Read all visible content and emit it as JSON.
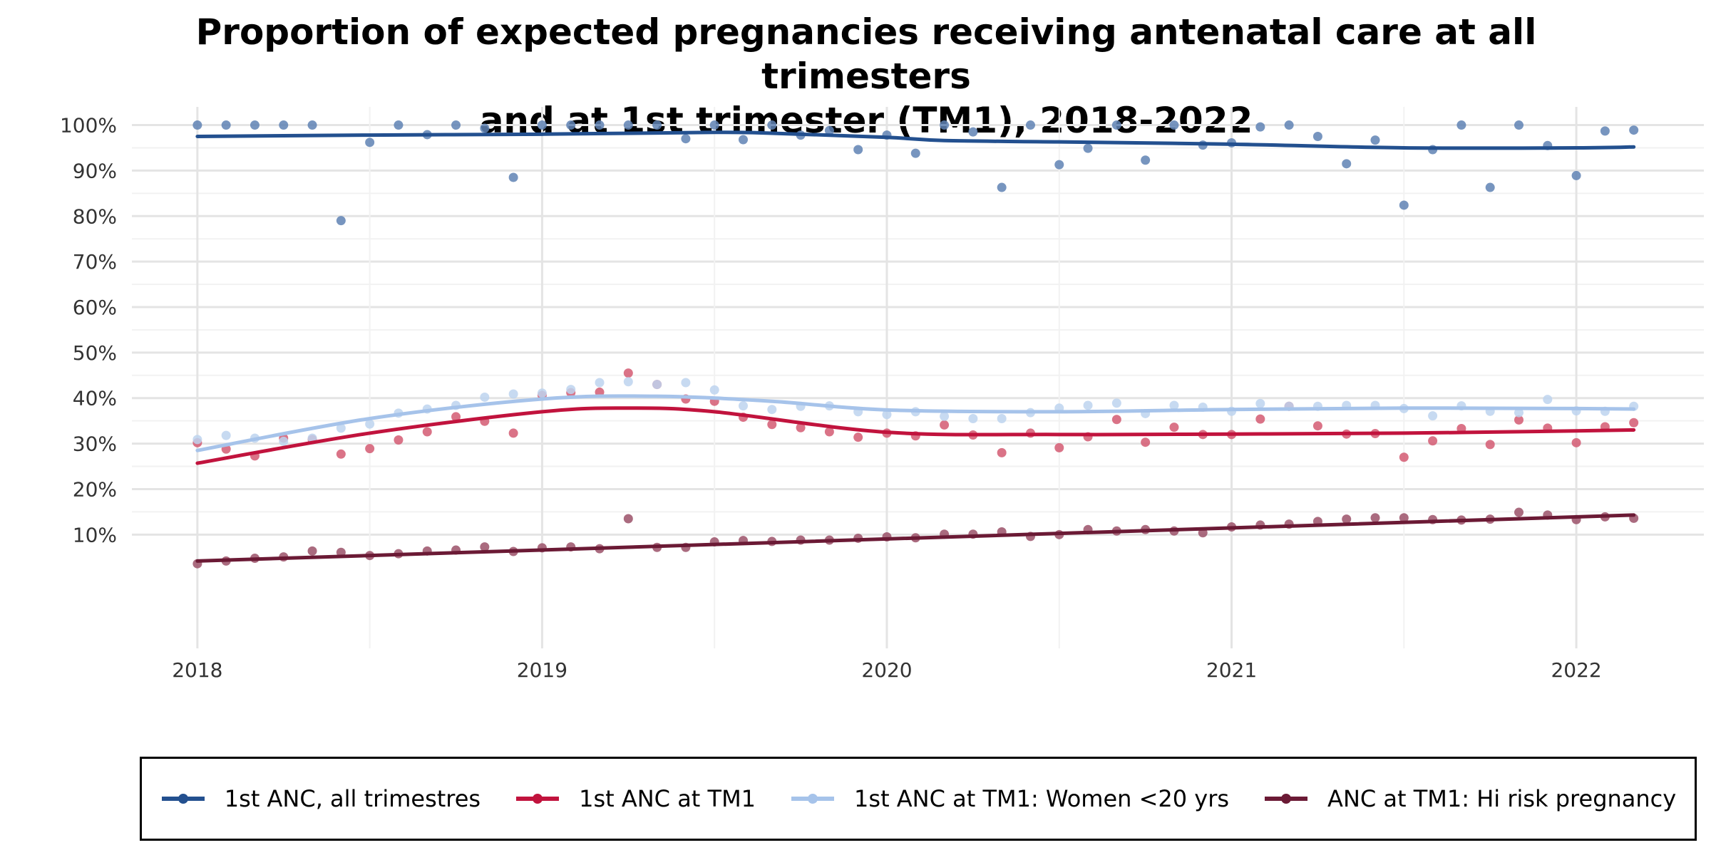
{
  "chart_data": {
    "type": "scatter",
    "title": "Proportion of expected pregnancies receiving antenatal care at all trimesters and at 1st trimester (TM1), 2018-2022",
    "title_lines": [
      "Proportion of expected pregnancies receiving antenatal care at all trimesters",
      "and at 1st trimester (TM1), 2018-2022"
    ],
    "xlabel": "",
    "ylabel": "",
    "xlim": [
      2017.81,
      2022.37
    ],
    "ylim": [
      -15,
      104
    ],
    "x_ticks": [
      2018,
      2019,
      2020,
      2021,
      2022
    ],
    "x_tick_labels": [
      "2018",
      "2019",
      "2020",
      "2021",
      "2022"
    ],
    "y_ticks": [
      10,
      20,
      30,
      40,
      50,
      60,
      70,
      80,
      90,
      100
    ],
    "y_tick_labels": [
      "10%",
      "20%",
      "30%",
      "40%",
      "50%",
      "60%",
      "70%",
      "80%",
      "90%",
      "100%"
    ],
    "grid": true,
    "legend_position": "bottom",
    "x_start_year": 2018,
    "months": 51,
    "series": [
      {
        "name": "1st ANC, all trimestres",
        "color": "#23508f",
        "point_color": "#5f83b4",
        "points": [
          100,
          100,
          100,
          100,
          100,
          79,
          96.2,
          100,
          97.9,
          100,
          99.3,
          88.5,
          100,
          100,
          100,
          100,
          100,
          97,
          100,
          96.8,
          100,
          97.8,
          98.8,
          94.6,
          97.8,
          93.8,
          100,
          98.5,
          86.3,
          100,
          91.3,
          94.9,
          100,
          92.3,
          100,
          95.6,
          96.1,
          99.6,
          100,
          97.5,
          91.5,
          96.7,
          82.4,
          94.6,
          100,
          86.3,
          100,
          95.5,
          88.9,
          98.7,
          98.9
        ],
        "trend_x": [
          0,
          6,
          12,
          18,
          20,
          24,
          26,
          30,
          36,
          42,
          48,
          50
        ],
        "trend_y": [
          97.5,
          97.8,
          98.0,
          98.4,
          98.2,
          97.3,
          96.6,
          96.3,
          95.8,
          95.0,
          95.0,
          95.2
        ]
      },
      {
        "name": "1st ANC at TM1",
        "color": "#c1133d",
        "point_color": "#d45a72",
        "points": [
          30.2,
          28.8,
          27.3,
          31.2,
          30.9,
          27.7,
          28.9,
          30.8,
          32.6,
          35.9,
          34.9,
          32.3,
          40.6,
          41.2,
          41.3,
          45.5,
          43,
          39.8,
          39.3,
          35.8,
          34.2,
          33.5,
          32.6,
          31.4,
          32.3,
          31.7,
          34.1,
          31.9,
          28,
          32.3,
          29.1,
          31.5,
          35.3,
          30.3,
          33.6,
          32,
          32,
          35.4,
          38.2,
          33.9,
          32.1,
          32.2,
          27,
          30.6,
          33.3,
          29.8,
          35.2,
          33.4,
          30.2,
          33.7,
          34.6
        ],
        "trend_x": [
          0,
          6,
          12,
          15,
          18,
          24,
          30,
          36,
          42,
          48,
          50
        ],
        "trend_y": [
          25.7,
          32.3,
          37.0,
          37.8,
          37.0,
          32.5,
          32.0,
          32.1,
          32.3,
          32.8,
          33.0
        ]
      },
      {
        "name": "1st ANC at TM1: Women <20 yrs",
        "color": "#a6c3ea",
        "point_color": "#bdd3ef",
        "points": [
          30.9,
          31.8,
          31.2,
          30.5,
          31.2,
          33.4,
          34.3,
          36.7,
          37.6,
          38.4,
          40.2,
          40.9,
          41.1,
          41.9,
          43.4,
          43.6,
          43,
          43.4,
          41.8,
          38.3,
          37.5,
          38.2,
          38.3,
          37,
          36.4,
          37,
          36,
          35.5,
          35.5,
          36.8,
          37.8,
          38.4,
          38.9,
          36.6,
          38.4,
          38,
          37.1,
          38.8,
          38.2,
          38.2,
          38.4,
          38.4,
          37.7,
          36.1,
          38.3,
          37.1,
          36.8,
          39.7,
          37.2,
          37.1,
          38.2
        ],
        "trend_x": [
          0,
          6,
          12,
          16,
          20,
          24,
          30,
          36,
          42,
          48,
          50
        ],
        "trend_y": [
          28.5,
          35.5,
          39.8,
          40.4,
          39.3,
          37.4,
          37.0,
          37.5,
          37.8,
          37.7,
          37.6
        ]
      },
      {
        "name": "ANC at TM1: Hi risk pregnancy",
        "color": "#6b1a35",
        "point_color": "#9b5168",
        "points": [
          3.6,
          4.2,
          4.8,
          5.1,
          6.4,
          6.1,
          5.4,
          5.8,
          6.4,
          6.6,
          7.3,
          6.3,
          7.1,
          7.3,
          6.9,
          13.5,
          7.2,
          7.2,
          8.4,
          8.7,
          8.5,
          8.8,
          8.8,
          9.2,
          9.5,
          9.3,
          10.1,
          10.1,
          10.6,
          9.6,
          10,
          11.1,
          10.8,
          11.1,
          10.8,
          10.4,
          11.7,
          12.1,
          12.3,
          12.9,
          13.4,
          13.7,
          13.7,
          13.3,
          13.2,
          13.4,
          14.9,
          14.3,
          13.3,
          13.9,
          13.6
        ],
        "trend_x": [
          0,
          50
        ],
        "trend_y": [
          4.2,
          14.3
        ]
      }
    ]
  }
}
